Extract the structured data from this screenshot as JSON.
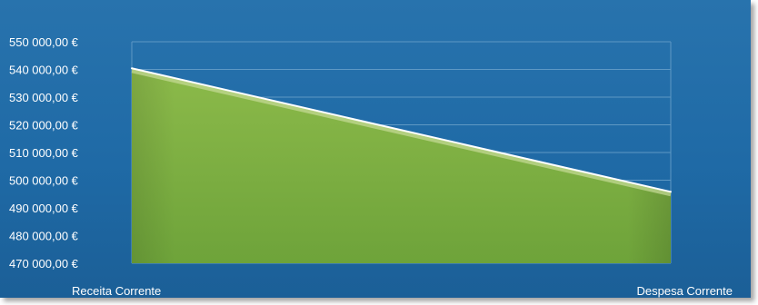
{
  "chart_data": {
    "type": "area",
    "categories": [
      "Receita Corrente",
      "Despesa Corrente"
    ],
    "values": [
      540400,
      495800
    ],
    "ylim": [
      470000,
      550000
    ],
    "yticks": [
      550000,
      540000,
      530000,
      520000,
      510000,
      500000,
      490000,
      480000,
      470000
    ],
    "ytick_labels": [
      "550 000,00 €",
      "540 000,00 €",
      "530 000,00 €",
      "520 000,00 €",
      "510 000,00 €",
      "500 000,00 €",
      "490 000,00 €",
      "480 000,00 €",
      "470 000,00 €"
    ],
    "title": "",
    "xlabel": "",
    "ylabel": "",
    "grid": true,
    "legend": "none",
    "colors": {
      "background": "#1f6aa6",
      "fill_top": "#8cba4a",
      "fill_bottom": "#6ea33a",
      "edge_line": "#ffffff",
      "gridline": "#5e98c4",
      "text": "#ffffff"
    }
  }
}
